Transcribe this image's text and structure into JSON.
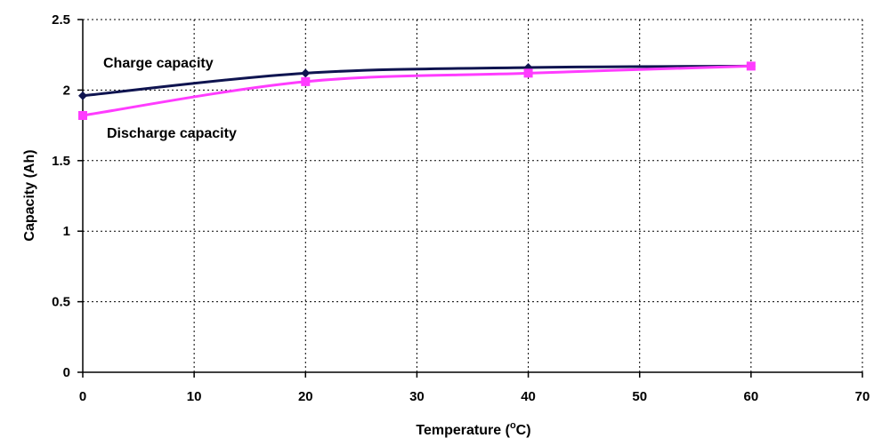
{
  "chart_data": {
    "type": "line",
    "xlabel_main": "Temperature (",
    "xlabel_sup": "o",
    "xlabel_tail": "C)",
    "ylabel": "Capacity (Ah)",
    "xlim": [
      0,
      70
    ],
    "ylim": [
      0,
      2.5
    ],
    "x_ticks": [
      0,
      10,
      20,
      30,
      40,
      50,
      60,
      70
    ],
    "y_ticks": [
      0,
      0.5,
      1,
      1.5,
      2,
      2.5
    ],
    "x_tick_labels": [
      "0",
      "10",
      "20",
      "30",
      "40",
      "50",
      "60",
      "70"
    ],
    "y_tick_labels": [
      "0",
      "0.5",
      "1",
      "1.5",
      "2",
      "2.5"
    ],
    "grid": true,
    "series": [
      {
        "name": "Charge capacity",
        "color": "#0f1450",
        "marker": "diamond",
        "x": [
          0,
          20,
          40,
          60
        ],
        "y": [
          1.96,
          2.12,
          2.16,
          2.17
        ]
      },
      {
        "name": "Discharge capacity",
        "color": "#ff3cff",
        "marker": "square",
        "x": [
          0,
          20,
          40,
          60
        ],
        "y": [
          1.82,
          2.06,
          2.12,
          2.17
        ]
      }
    ]
  }
}
